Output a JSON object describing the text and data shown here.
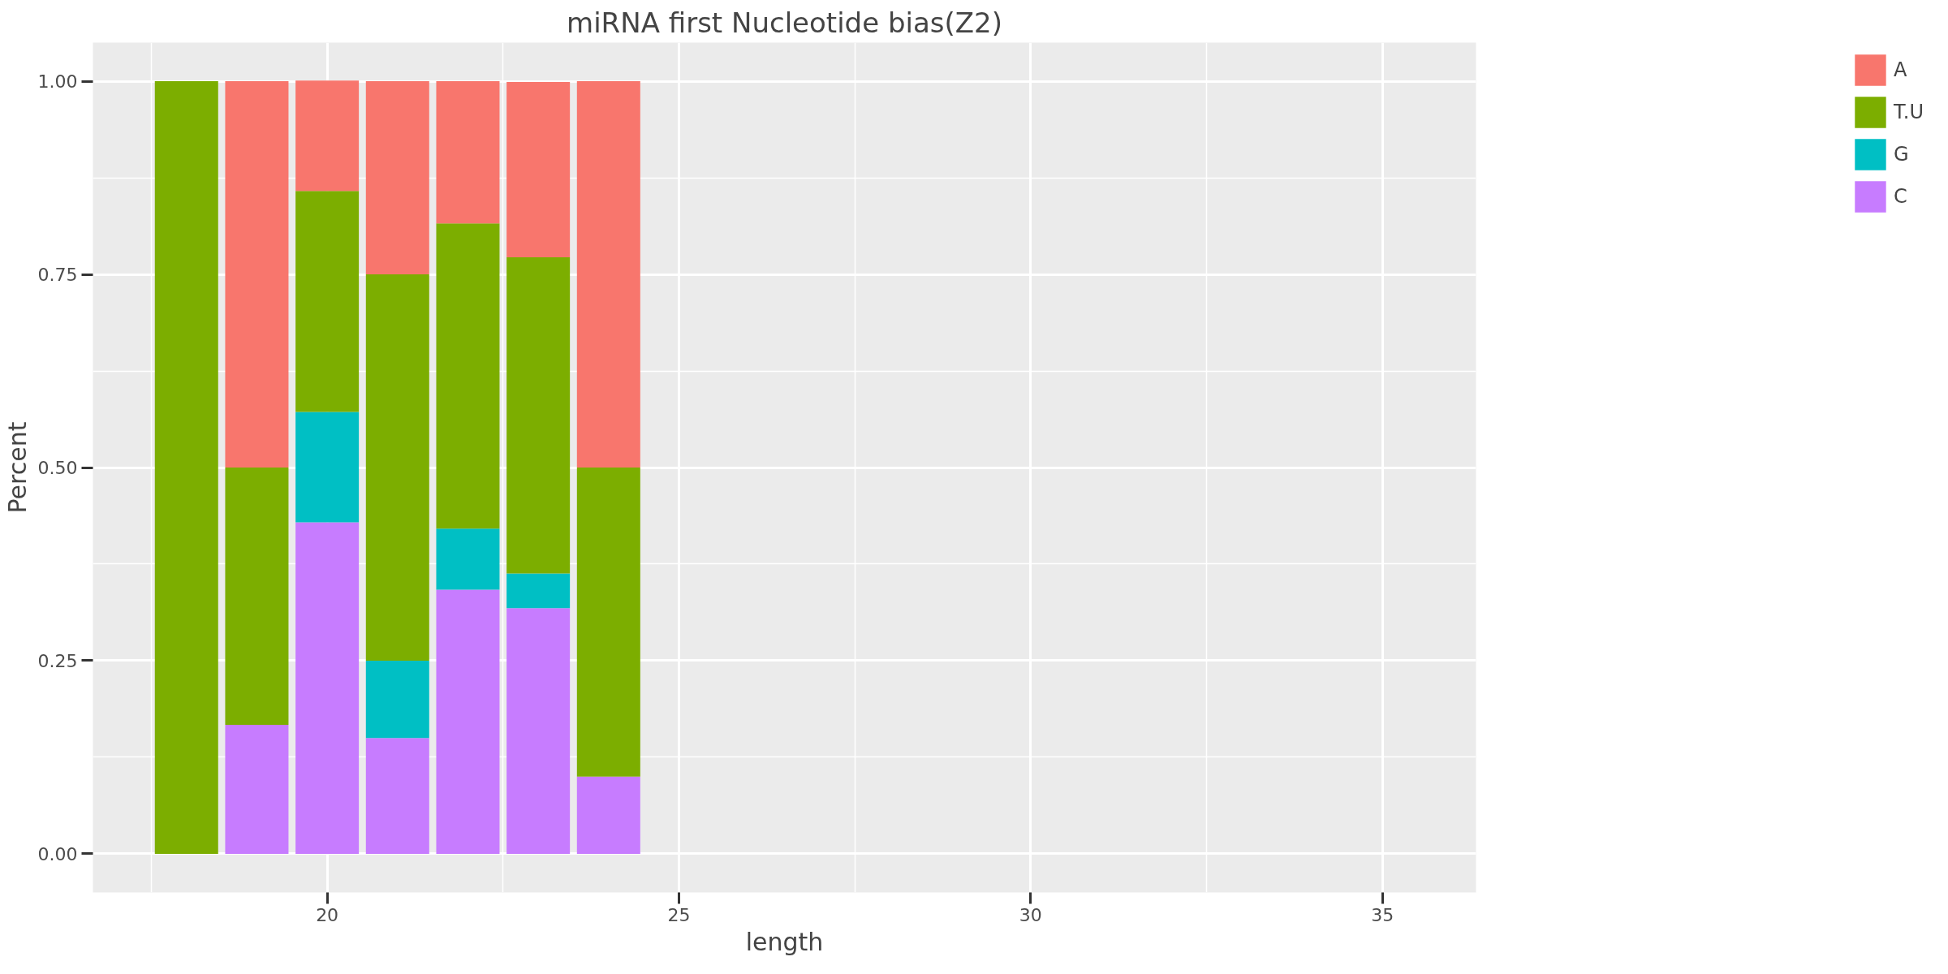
{
  "chart_data": {
    "type": "bar",
    "title": "miRNA first Nucleotide bias(Z2)",
    "xlabel": "length",
    "ylabel": "Percent",
    "stacked": true,
    "x": [
      18,
      19,
      20,
      21,
      22,
      23,
      24
    ],
    "series": [
      {
        "name": "C",
        "color": "#c77cff",
        "values": [
          0,
          0.167,
          0.429,
          0.15,
          0.342,
          0.318,
          0.1
        ]
      },
      {
        "name": "G",
        "color": "#00bfc4",
        "values": [
          0,
          0,
          0.143,
          0.1,
          0.079,
          0.045,
          0
        ]
      },
      {
        "name": "T.U",
        "color": "#7cae00",
        "values": [
          1,
          0.333,
          0.286,
          0.5,
          0.395,
          0.409,
          0.4
        ]
      },
      {
        "name": "A",
        "color": "#f8766d",
        "values": [
          0,
          0.5,
          0.143,
          0.25,
          0.184,
          0.227,
          0.5
        ]
      }
    ],
    "xlim": [
      16.67,
      36.33
    ],
    "xticks": [
      20,
      25,
      30,
      35
    ],
    "ylim": [
      -0.05,
      1.05
    ],
    "yticks": [
      {
        "value": 0,
        "label": "0.00"
      },
      {
        "value": 0.25,
        "label": "0.25"
      },
      {
        "value": 0.5,
        "label": "0.50"
      },
      {
        "value": 0.75,
        "label": "0.75"
      },
      {
        "value": 1,
        "label": "1.00"
      }
    ],
    "grid": true,
    "legend": "right"
  }
}
